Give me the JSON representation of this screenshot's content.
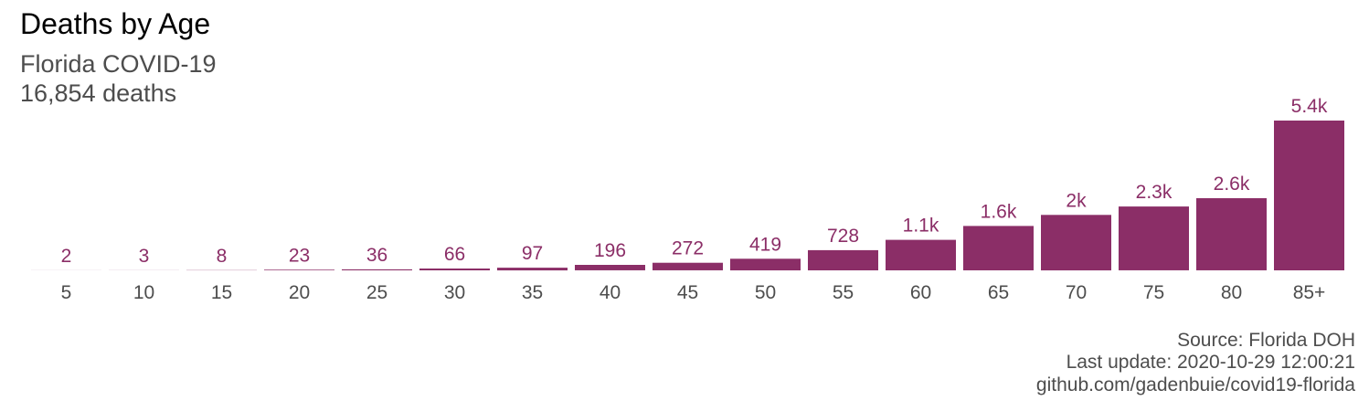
{
  "colors": {
    "bar": "#8B2E67",
    "label": "#8B2E67",
    "tick": "#4d4d4d"
  },
  "chart_data": {
    "type": "bar",
    "title": "Deaths by Age",
    "subtitle": "Florida COVID-19",
    "subtitle2": "16,854 deaths",
    "categories": [
      "5",
      "10",
      "15",
      "20",
      "25",
      "30",
      "35",
      "40",
      "45",
      "50",
      "55",
      "60",
      "65",
      "70",
      "75",
      "80",
      "85+"
    ],
    "values": [
      2,
      3,
      8,
      23,
      36,
      66,
      97,
      196,
      272,
      419,
      728,
      1100,
      1600,
      2000,
      2300,
      2600,
      5400
    ],
    "value_labels": [
      "2",
      "3",
      "8",
      "23",
      "36",
      "66",
      "97",
      "196",
      "272",
      "419",
      "728",
      "1.1k",
      "1.6k",
      "2k",
      "2.3k",
      "2.6k",
      "5.4k"
    ],
    "ylim": [
      0,
      5400
    ],
    "grid": false,
    "legend": "none"
  },
  "caption": {
    "source": "Source: Florida DOH",
    "updated": "Last update: 2020-10-29 12:00:21",
    "url": "github.com/gadenbuie/covid19-florida"
  }
}
